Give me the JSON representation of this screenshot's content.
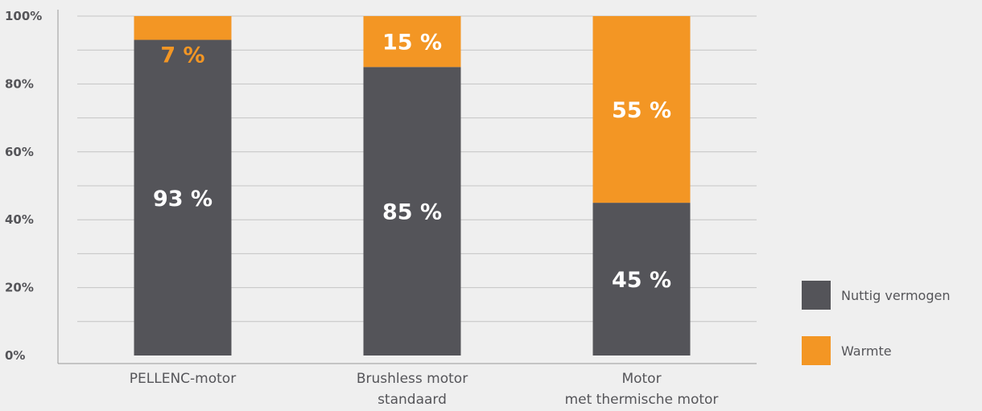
{
  "chart_data": {
    "type": "bar",
    "stacked": true,
    "categories": [
      [
        "PELLENC-motor"
      ],
      [
        "Brushless motor",
        "standaard"
      ],
      [
        "Motor",
        "met thermische motor"
      ]
    ],
    "series": [
      {
        "name": "Nuttig vermogen",
        "values": [
          93,
          85,
          45
        ],
        "color": "#545459",
        "labels": [
          "93 %",
          "85 %",
          "45 %"
        ],
        "label_color": "#ffffff"
      },
      {
        "name": "Warmte",
        "values": [
          7,
          15,
          55
        ],
        "color": "#f39624",
        "labels": [
          "7 %",
          "15 %",
          "55 %"
        ],
        "label_color": "#ffffff"
      }
    ],
    "yticks": [
      "0%",
      "20%",
      "40%",
      "60%",
      "80%",
      "100%"
    ],
    "ylim": [
      0,
      100
    ],
    "grid": true,
    "legend_position": "right"
  }
}
